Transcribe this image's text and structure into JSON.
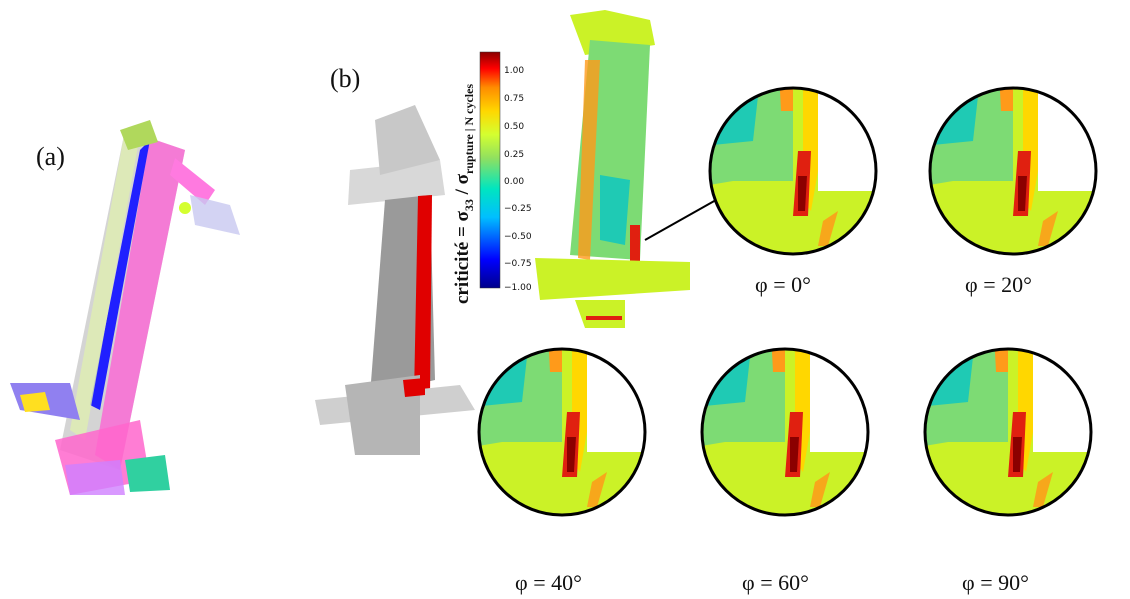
{
  "labels": {
    "panel_a": "(a)",
    "panel_b": "(b)"
  },
  "colorbar": {
    "title_prefix": "criticité = ",
    "sigma": "σ",
    "sub33": "33",
    "sub_rupture": "rupture",
    "bar_n_cycles": "| N cycles",
    "slash": " / ",
    "ticks": [
      "1.00",
      "0.75",
      "0.50",
      "0.25",
      "0.00",
      "−0.25",
      "−0.50",
      "−0.75",
      "−1.00"
    ],
    "range": [
      -1.0,
      1.0
    ],
    "colormap": [
      "#00008b",
      "#0000ff",
      "#00bfff",
      "#00e5c0",
      "#90e060",
      "#d4ff30",
      "#ffd700",
      "#ff8c00",
      "#ff0000",
      "#8b0000"
    ]
  },
  "captions": {
    "phi0": "φ = 0°",
    "phi20": "φ = 20°",
    "phi40": "φ = 40°",
    "phi60": "φ = 60°",
    "phi90": "φ = 90°"
  },
  "colors": {
    "field_base": "#cbf227",
    "field_green": "#7ddb74",
    "field_teal": "#1fcab4",
    "field_orange": "#ff9a1a",
    "field_red": "#e02010",
    "circle_border": "#000000"
  }
}
